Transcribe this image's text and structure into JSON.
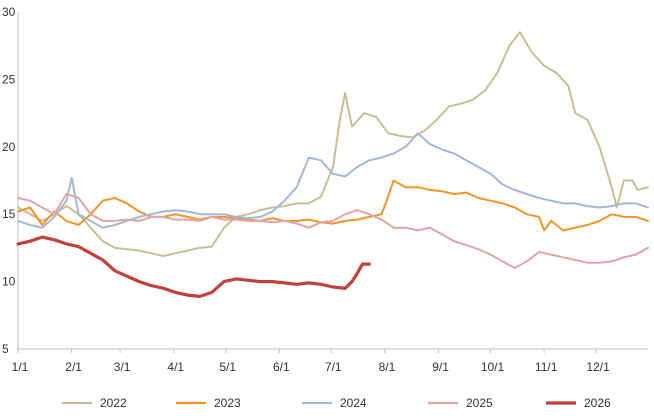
{
  "chart_data": {
    "type": "line",
    "title": "",
    "xlabel": "",
    "ylabel": "",
    "x_ticks": [
      "1/1",
      "2/1",
      "3/1",
      "4/1",
      "5/1",
      "6/1",
      "7/1",
      "8/1",
      "9/1",
      "10/1",
      "11/1",
      "12/1"
    ],
    "y_ticks": [
      "5",
      "10",
      "15",
      "20",
      "25",
      "30"
    ],
    "ylim": [
      5,
      30
    ],
    "grid": false,
    "legend_position": "bottom",
    "series": [
      {
        "name": "2022",
        "color": "#c8bf95",
        "points": [
          [
            0,
            15.5
          ],
          [
            7,
            15.0
          ],
          [
            14,
            14.5
          ],
          [
            21,
            15.0
          ],
          [
            28,
            15.6
          ],
          [
            35,
            15.0
          ],
          [
            42,
            14.0
          ],
          [
            49,
            13.0
          ],
          [
            56,
            12.5
          ],
          [
            63,
            12.4
          ],
          [
            70,
            12.3
          ],
          [
            77,
            12.1
          ],
          [
            84,
            11.9
          ],
          [
            91,
            12.1
          ],
          [
            98,
            12.3
          ],
          [
            105,
            12.5
          ],
          [
            112,
            12.6
          ],
          [
            119,
            14.0
          ],
          [
            126,
            14.8
          ],
          [
            133,
            15.0
          ],
          [
            140,
            15.3
          ],
          [
            147,
            15.5
          ],
          [
            154,
            15.6
          ],
          [
            161,
            15.8
          ],
          [
            168,
            15.8
          ],
          [
            175,
            16.3
          ],
          [
            182,
            18.5
          ],
          [
            186,
            22.0
          ],
          [
            189,
            24.0
          ],
          [
            193,
            21.5
          ],
          [
            200,
            22.5
          ],
          [
            207,
            22.2
          ],
          [
            214,
            21.0
          ],
          [
            221,
            20.8
          ],
          [
            228,
            20.7
          ],
          [
            235,
            21.2
          ],
          [
            242,
            22.0
          ],
          [
            249,
            23.0
          ],
          [
            256,
            23.2
          ],
          [
            263,
            23.5
          ],
          [
            270,
            24.2
          ],
          [
            277,
            25.5
          ],
          [
            284,
            27.5
          ],
          [
            290,
            28.5
          ],
          [
            297,
            27.0
          ],
          [
            304,
            26.0
          ],
          [
            311,
            25.5
          ],
          [
            318,
            24.5
          ],
          [
            322,
            22.5
          ],
          [
            329,
            22.0
          ],
          [
            336,
            20.0
          ],
          [
            343,
            17.0
          ],
          [
            346,
            15.5
          ],
          [
            350,
            17.5
          ],
          [
            355,
            17.5
          ],
          [
            358,
            16.8
          ],
          [
            364,
            17.0
          ]
        ]
      },
      {
        "name": "2023",
        "color": "#f0952b",
        "points": [
          [
            0,
            15.2
          ],
          [
            7,
            15.5
          ],
          [
            14,
            14.2
          ],
          [
            21,
            15.2
          ],
          [
            28,
            14.5
          ],
          [
            35,
            14.2
          ],
          [
            42,
            15.0
          ],
          [
            49,
            16.0
          ],
          [
            56,
            16.2
          ],
          [
            63,
            15.8
          ],
          [
            70,
            15.2
          ],
          [
            77,
            14.8
          ],
          [
            84,
            14.8
          ],
          [
            91,
            15.0
          ],
          [
            98,
            14.8
          ],
          [
            105,
            14.6
          ],
          [
            112,
            14.8
          ],
          [
            119,
            14.8
          ],
          [
            126,
            14.7
          ],
          [
            133,
            14.6
          ],
          [
            140,
            14.5
          ],
          [
            147,
            14.7
          ],
          [
            154,
            14.5
          ],
          [
            161,
            14.5
          ],
          [
            168,
            14.6
          ],
          [
            175,
            14.4
          ],
          [
            182,
            14.3
          ],
          [
            189,
            14.5
          ],
          [
            196,
            14.6
          ],
          [
            203,
            14.8
          ],
          [
            210,
            15.0
          ],
          [
            213,
            16.0
          ],
          [
            217,
            17.5
          ],
          [
            224,
            17.0
          ],
          [
            231,
            17.0
          ],
          [
            238,
            16.8
          ],
          [
            245,
            16.7
          ],
          [
            252,
            16.5
          ],
          [
            259,
            16.6
          ],
          [
            266,
            16.2
          ],
          [
            273,
            16.0
          ],
          [
            280,
            15.8
          ],
          [
            287,
            15.5
          ],
          [
            294,
            15.0
          ],
          [
            301,
            14.8
          ],
          [
            304,
            13.8
          ],
          [
            308,
            14.5
          ],
          [
            315,
            13.8
          ],
          [
            322,
            14.0
          ],
          [
            329,
            14.2
          ],
          [
            336,
            14.5
          ],
          [
            343,
            15.0
          ],
          [
            350,
            14.8
          ],
          [
            357,
            14.8
          ],
          [
            364,
            14.5
          ]
        ]
      },
      {
        "name": "2024",
        "color": "#a4b8d6",
        "points": [
          [
            0,
            14.5
          ],
          [
            7,
            14.2
          ],
          [
            14,
            14.0
          ],
          [
            21,
            14.8
          ],
          [
            28,
            16.0
          ],
          [
            31,
            17.7
          ],
          [
            35,
            15.0
          ],
          [
            42,
            14.5
          ],
          [
            49,
            14.0
          ],
          [
            56,
            14.2
          ],
          [
            63,
            14.5
          ],
          [
            70,
            14.8
          ],
          [
            77,
            15.0
          ],
          [
            84,
            15.2
          ],
          [
            91,
            15.3
          ],
          [
            98,
            15.2
          ],
          [
            105,
            15.0
          ],
          [
            112,
            15.0
          ],
          [
            119,
            15.0
          ],
          [
            126,
            14.8
          ],
          [
            133,
            14.7
          ],
          [
            140,
            14.8
          ],
          [
            147,
            15.2
          ],
          [
            154,
            16.0
          ],
          [
            161,
            17.0
          ],
          [
            168,
            19.2
          ],
          [
            175,
            19.0
          ],
          [
            182,
            18.0
          ],
          [
            189,
            17.8
          ],
          [
            196,
            18.5
          ],
          [
            203,
            19.0
          ],
          [
            210,
            19.2
          ],
          [
            217,
            19.5
          ],
          [
            224,
            20.0
          ],
          [
            231,
            21.0
          ],
          [
            238,
            20.2
          ],
          [
            245,
            19.8
          ],
          [
            252,
            19.5
          ],
          [
            259,
            19.0
          ],
          [
            266,
            18.5
          ],
          [
            273,
            18.0
          ],
          [
            280,
            17.2
          ],
          [
            287,
            16.8
          ],
          [
            294,
            16.5
          ],
          [
            301,
            16.2
          ],
          [
            308,
            16.0
          ],
          [
            315,
            15.8
          ],
          [
            322,
            15.8
          ],
          [
            329,
            15.6
          ],
          [
            336,
            15.5
          ],
          [
            343,
            15.6
          ],
          [
            350,
            15.8
          ],
          [
            357,
            15.8
          ],
          [
            364,
            15.5
          ]
        ]
      },
      {
        "name": "2025",
        "color": "#e0a5a6",
        "points": [
          [
            0,
            16.2
          ],
          [
            7,
            16.0
          ],
          [
            14,
            15.5
          ],
          [
            21,
            15.0
          ],
          [
            28,
            16.5
          ],
          [
            35,
            16.2
          ],
          [
            42,
            15.0
          ],
          [
            49,
            14.5
          ],
          [
            56,
            14.5
          ],
          [
            63,
            14.6
          ],
          [
            70,
            14.5
          ],
          [
            77,
            14.8
          ],
          [
            84,
            14.8
          ],
          [
            91,
            14.6
          ],
          [
            98,
            14.6
          ],
          [
            105,
            14.5
          ],
          [
            112,
            14.8
          ],
          [
            119,
            14.6
          ],
          [
            126,
            14.6
          ],
          [
            133,
            14.5
          ],
          [
            140,
            14.5
          ],
          [
            147,
            14.4
          ],
          [
            154,
            14.5
          ],
          [
            161,
            14.3
          ],
          [
            168,
            14.0
          ],
          [
            175,
            14.4
          ],
          [
            182,
            14.5
          ],
          [
            189,
            15.0
          ],
          [
            196,
            15.3
          ],
          [
            203,
            15.0
          ],
          [
            210,
            14.6
          ],
          [
            217,
            14.0
          ],
          [
            224,
            14.0
          ],
          [
            231,
            13.8
          ],
          [
            238,
            14.0
          ],
          [
            245,
            13.5
          ],
          [
            252,
            13.0
          ],
          [
            259,
            12.7
          ],
          [
            266,
            12.4
          ],
          [
            273,
            12.0
          ],
          [
            280,
            11.5
          ],
          [
            287,
            11.0
          ],
          [
            294,
            11.5
          ],
          [
            301,
            12.2
          ],
          [
            308,
            12.0
          ],
          [
            315,
            11.8
          ],
          [
            322,
            11.6
          ],
          [
            329,
            11.4
          ],
          [
            336,
            11.4
          ],
          [
            343,
            11.5
          ],
          [
            350,
            11.8
          ],
          [
            357,
            12.0
          ],
          [
            364,
            12.5
          ]
        ]
      },
      {
        "name": "2026",
        "color": "#c0413b",
        "points": [
          [
            0,
            12.8
          ],
          [
            7,
            13.0
          ],
          [
            14,
            13.3
          ],
          [
            21,
            13.1
          ],
          [
            28,
            12.8
          ],
          [
            35,
            12.6
          ],
          [
            42,
            12.1
          ],
          [
            49,
            11.6
          ],
          [
            56,
            10.8
          ],
          [
            63,
            10.4
          ],
          [
            70,
            10.0
          ],
          [
            77,
            9.7
          ],
          [
            84,
            9.5
          ],
          [
            91,
            9.2
          ],
          [
            98,
            9.0
          ],
          [
            105,
            8.9
          ],
          [
            112,
            9.2
          ],
          [
            119,
            10.0
          ],
          [
            126,
            10.2
          ],
          [
            133,
            10.1
          ],
          [
            140,
            10.0
          ],
          [
            147,
            10.0
          ],
          [
            154,
            9.9
          ],
          [
            161,
            9.8
          ],
          [
            168,
            9.9
          ],
          [
            175,
            9.8
          ],
          [
            182,
            9.6
          ],
          [
            189,
            9.5
          ],
          [
            193,
            10.0
          ],
          [
            196,
            10.6
          ],
          [
            199,
            11.3
          ],
          [
            203,
            11.3
          ]
        ]
      }
    ]
  }
}
